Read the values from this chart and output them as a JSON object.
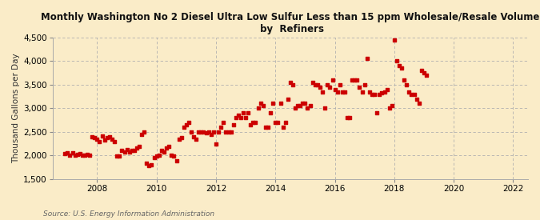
{
  "title": "Monthly Washington No 2 Diesel Ultra Low Sulfur Less than 15 ppm Wholesale/Resale Volume\n by  Refiners",
  "ylabel": "Thousand Gallons per Day",
  "source": "Source: U.S. Energy Information Administration",
  "background_color": "#faecc8",
  "plot_bg_color": "#faecc8",
  "dot_color": "#cc0000",
  "ylim": [
    1500,
    4500
  ],
  "yticks": [
    1500,
    2000,
    2500,
    3000,
    3500,
    4000,
    4500
  ],
  "xlim_start": 2006.5,
  "xlim_end": 2022.5,
  "xticks": [
    2008,
    2010,
    2012,
    2014,
    2016,
    2018,
    2020,
    2022
  ],
  "data": [
    [
      2006.92,
      2040
    ],
    [
      2007.0,
      2050
    ],
    [
      2007.08,
      2000
    ],
    [
      2007.17,
      2050
    ],
    [
      2007.25,
      2010
    ],
    [
      2007.33,
      2020
    ],
    [
      2007.42,
      2040
    ],
    [
      2007.5,
      2010
    ],
    [
      2007.58,
      2000
    ],
    [
      2007.67,
      2030
    ],
    [
      2007.75,
      2010
    ],
    [
      2007.83,
      2400
    ],
    [
      2007.92,
      2380
    ],
    [
      2008.0,
      2350
    ],
    [
      2008.08,
      2300
    ],
    [
      2008.17,
      2410
    ],
    [
      2008.25,
      2320
    ],
    [
      2008.33,
      2380
    ],
    [
      2008.42,
      2400
    ],
    [
      2008.5,
      2350
    ],
    [
      2008.58,
      2300
    ],
    [
      2008.67,
      1990
    ],
    [
      2008.75,
      1990
    ],
    [
      2008.83,
      2100
    ],
    [
      2008.92,
      2080
    ],
    [
      2009.0,
      2120
    ],
    [
      2009.08,
      2080
    ],
    [
      2009.17,
      2100
    ],
    [
      2009.25,
      2100
    ],
    [
      2009.33,
      2150
    ],
    [
      2009.42,
      2200
    ],
    [
      2009.5,
      2450
    ],
    [
      2009.58,
      2500
    ],
    [
      2009.67,
      1830
    ],
    [
      2009.75,
      1780
    ],
    [
      2009.83,
      1800
    ],
    [
      2009.92,
      1960
    ],
    [
      2010.0,
      1990
    ],
    [
      2010.08,
      2000
    ],
    [
      2010.17,
      2100
    ],
    [
      2010.25,
      2080
    ],
    [
      2010.33,
      2150
    ],
    [
      2010.42,
      2200
    ],
    [
      2010.5,
      2000
    ],
    [
      2010.58,
      1990
    ],
    [
      2010.67,
      1890
    ],
    [
      2010.75,
      2350
    ],
    [
      2010.83,
      2380
    ],
    [
      2010.92,
      2600
    ],
    [
      2011.0,
      2650
    ],
    [
      2011.08,
      2700
    ],
    [
      2011.17,
      2500
    ],
    [
      2011.25,
      2400
    ],
    [
      2011.33,
      2350
    ],
    [
      2011.42,
      2500
    ],
    [
      2011.5,
      2500
    ],
    [
      2011.58,
      2500
    ],
    [
      2011.67,
      2480
    ],
    [
      2011.75,
      2500
    ],
    [
      2011.83,
      2450
    ],
    [
      2011.92,
      2500
    ],
    [
      2012.0,
      2250
    ],
    [
      2012.08,
      2500
    ],
    [
      2012.17,
      2600
    ],
    [
      2012.25,
      2700
    ],
    [
      2012.33,
      2500
    ],
    [
      2012.42,
      2500
    ],
    [
      2012.5,
      2500
    ],
    [
      2012.58,
      2650
    ],
    [
      2012.67,
      2800
    ],
    [
      2012.75,
      2850
    ],
    [
      2012.83,
      2800
    ],
    [
      2012.92,
      2900
    ],
    [
      2013.0,
      2800
    ],
    [
      2013.08,
      2900
    ],
    [
      2013.17,
      2650
    ],
    [
      2013.25,
      2700
    ],
    [
      2013.33,
      2700
    ],
    [
      2013.42,
      3000
    ],
    [
      2013.5,
      3100
    ],
    [
      2013.58,
      3050
    ],
    [
      2013.67,
      2600
    ],
    [
      2013.75,
      2600
    ],
    [
      2013.83,
      2900
    ],
    [
      2013.92,
      3100
    ],
    [
      2014.0,
      2700
    ],
    [
      2014.08,
      2700
    ],
    [
      2014.17,
      3100
    ],
    [
      2014.25,
      2600
    ],
    [
      2014.33,
      2700
    ],
    [
      2014.42,
      3200
    ],
    [
      2014.5,
      3550
    ],
    [
      2014.58,
      3500
    ],
    [
      2014.67,
      3000
    ],
    [
      2014.75,
      3050
    ],
    [
      2014.83,
      3050
    ],
    [
      2014.92,
      3100
    ],
    [
      2015.0,
      3100
    ],
    [
      2015.08,
      3000
    ],
    [
      2015.17,
      3050
    ],
    [
      2015.25,
      3550
    ],
    [
      2015.33,
      3500
    ],
    [
      2015.42,
      3500
    ],
    [
      2015.5,
      3450
    ],
    [
      2015.58,
      3350
    ],
    [
      2015.67,
      3000
    ],
    [
      2015.75,
      3500
    ],
    [
      2015.83,
      3450
    ],
    [
      2015.92,
      3600
    ],
    [
      2016.0,
      3400
    ],
    [
      2016.08,
      3350
    ],
    [
      2016.17,
      3500
    ],
    [
      2016.25,
      3350
    ],
    [
      2016.33,
      3350
    ],
    [
      2016.42,
      2800
    ],
    [
      2016.5,
      2800
    ],
    [
      2016.58,
      3600
    ],
    [
      2016.67,
      3600
    ],
    [
      2016.75,
      3600
    ],
    [
      2016.83,
      3450
    ],
    [
      2016.92,
      3350
    ],
    [
      2017.0,
      3500
    ],
    [
      2017.08,
      4060
    ],
    [
      2017.17,
      3350
    ],
    [
      2017.25,
      3300
    ],
    [
      2017.33,
      3300
    ],
    [
      2017.42,
      2900
    ],
    [
      2017.5,
      3300
    ],
    [
      2017.58,
      3330
    ],
    [
      2017.67,
      3350
    ],
    [
      2017.75,
      3400
    ],
    [
      2017.83,
      3000
    ],
    [
      2017.92,
      3050
    ],
    [
      2018.0,
      4450
    ],
    [
      2018.08,
      4000
    ],
    [
      2018.17,
      3900
    ],
    [
      2018.25,
      3850
    ],
    [
      2018.33,
      3600
    ],
    [
      2018.42,
      3500
    ],
    [
      2018.5,
      3350
    ],
    [
      2018.58,
      3300
    ],
    [
      2018.67,
      3300
    ],
    [
      2018.75,
      3200
    ],
    [
      2018.83,
      3100
    ],
    [
      2018.92,
      3800
    ],
    [
      2019.0,
      3750
    ],
    [
      2019.08,
      3700
    ]
  ]
}
